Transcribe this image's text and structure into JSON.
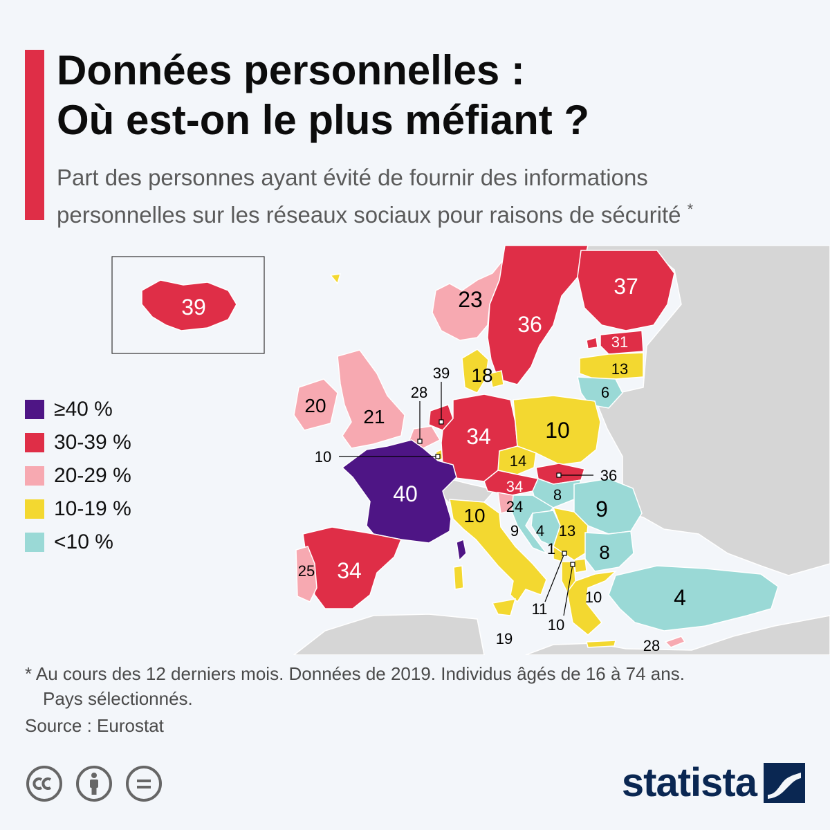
{
  "header": {
    "title_line1": "Données personnelles :",
    "title_line2": "Où est-on le plus méfiant ?",
    "subtitle_line1": "Part des personnes ayant évité de fournir des informations",
    "subtitle_line2": "personnelles sur les réseaux sociaux pour raisons de sécurité",
    "subtitle_mark": "*"
  },
  "legend": {
    "items": [
      {
        "label": "≥40 %",
        "color": "#4e1585"
      },
      {
        "label": "30-39 %",
        "color": "#df2e47"
      },
      {
        "label": "20-29 %",
        "color": "#f7a9b1"
      },
      {
        "label": "10-19 %",
        "color": "#f3d830"
      },
      {
        "label": "<10 %",
        "color": "#9ad9d6"
      }
    ]
  },
  "map_labels": {
    "iceland": "39",
    "norway": "23",
    "sweden": "36",
    "finland": "37",
    "estonia": "31",
    "latvia": "13",
    "lithuania": "6",
    "denmark": "18",
    "netherlands": "39",
    "belgium": "28",
    "luxembourg": "10",
    "ireland": "20",
    "uk": "21",
    "germany": "34",
    "poland": "10",
    "czechia": "14",
    "slovakia": "36",
    "austria": "34",
    "hungary": "8",
    "slovenia": "24",
    "romania": "9",
    "france": "40",
    "italy": "10",
    "croatia": "9",
    "bosnia": "4",
    "serbia": "13",
    "montenegro": "1",
    "bulgaria": "8",
    "albania": "11",
    "north_macedonia": "10",
    "greece": "10",
    "turkey": "4",
    "spain": "34",
    "portugal": "25",
    "malta": "19",
    "cyprus": "28"
  },
  "footer": {
    "note_line1": "* Au cours des 12 derniers mois. Données de 2019. Individus âgés de 16 à 74 ans.",
    "note_line2": "Pays sélectionnés.",
    "source": "Source : Eurostat",
    "brand": "statista"
  }
}
